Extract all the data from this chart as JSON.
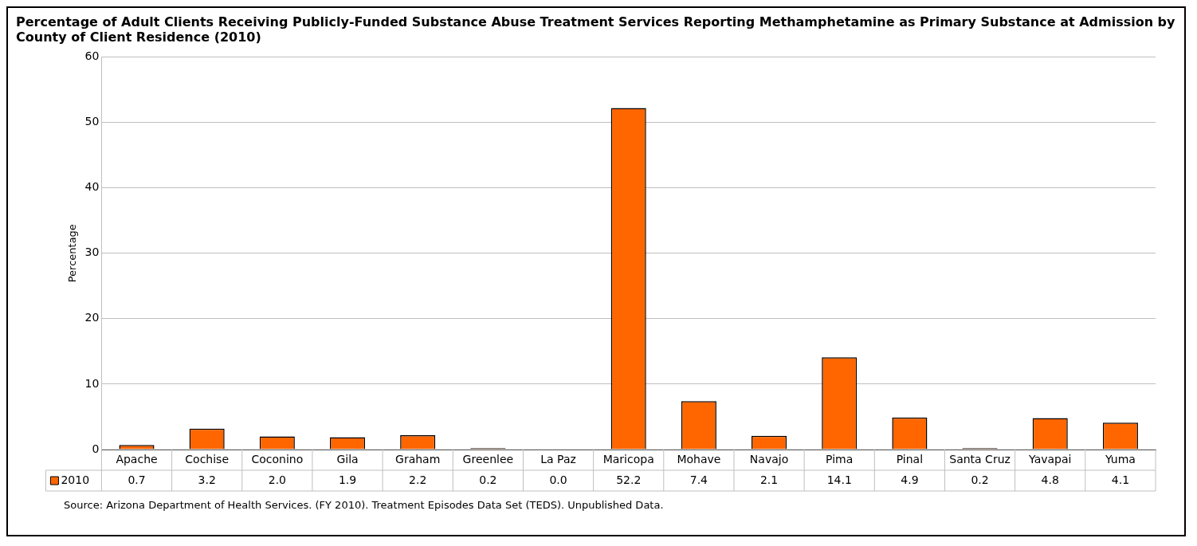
{
  "chart_data": {
    "type": "bar",
    "title": "Percentage of Adult Clients Receiving Publicly-Funded Substance Abuse Treatment Services Reporting Methamphetamine as Primary Substance at Admission by County of Client Residence (2010)",
    "ylabel": "Percentage",
    "categories": [
      "Apache",
      "Cochise",
      "Coconino",
      "Gila",
      "Graham",
      "Greenlee",
      "La Paz",
      "Maricopa",
      "Mohave",
      "Navajo",
      "Pima",
      "Pinal",
      "Santa Cruz",
      "Yavapai",
      "Yuma"
    ],
    "series": [
      {
        "name": "2010",
        "color": "#ff6600",
        "values": [
          0.7,
          3.2,
          2.0,
          1.9,
          2.2,
          0.2,
          0.0,
          52.2,
          7.4,
          2.1,
          14.1,
          4.9,
          0.2,
          4.8,
          4.1
        ],
        "value_labels": [
          "0.7",
          "3.2",
          "2.0",
          "1.9",
          "2.2",
          "0.2",
          "0.0",
          "52.2",
          "7.4",
          "2.1",
          "14.1",
          "4.9",
          "0.2",
          "4.8",
          "4.1"
        ]
      }
    ],
    "ylim": [
      0,
      60
    ],
    "yticks": [
      0,
      10,
      20,
      30,
      40,
      50,
      60
    ],
    "grid": "y",
    "legend": "bottom left",
    "annotations": [
      "Source: Arizona Department of Health Services. (FY 2010). Treatment Episodes Data Set (TEDS). Unpublished Data."
    ]
  }
}
